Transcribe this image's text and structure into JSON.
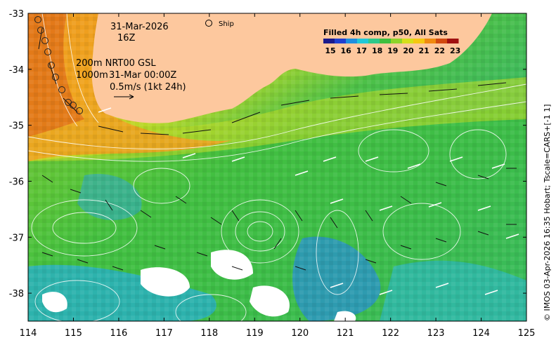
{
  "map": {
    "x_ticks": [
      "114",
      "115",
      "116",
      "117",
      "118",
      "119",
      "120",
      "121",
      "122",
      "123",
      "124",
      "125"
    ],
    "y_ticks": [
      "-33",
      "-34",
      "-35",
      "-36",
      "-37",
      "-38"
    ],
    "lon_range": [
      114,
      125
    ],
    "lat_range": [
      -38.5,
      -33
    ],
    "annotations": {
      "date": "31-Mar-2026",
      "hour": "16Z",
      "line1": "200m  NRT00 GSL",
      "line2a": "1000m",
      "line2b": "31-Mar 00:00Z",
      "line3": "0.5m/s (1kt 24h)",
      "ship_label": "Ship"
    },
    "colorbar": {
      "title": "Filled 4h comp, p50, All Sats",
      "labels": [
        "15",
        "16",
        "17",
        "18",
        "19",
        "20",
        "21",
        "22",
        "23"
      ],
      "colors": [
        "#1a1a8c",
        "#1f3fd0",
        "#1e8fe0",
        "#20c8d8",
        "#2ec98a",
        "#3fbf3f",
        "#8fd42a",
        "#d6e01a",
        "#f5c810",
        "#f08a10",
        "#d24a10",
        "#a01010"
      ]
    },
    "credit": "© IMOS 03-Apr-2026 16:35 Hobart; Tscale=CARS+[-1 1]",
    "colors": {
      "land": "#fdc89e",
      "warm": "#f29a20",
      "green": "#3cbf4a",
      "cool": "#2fb8c8"
    }
  }
}
